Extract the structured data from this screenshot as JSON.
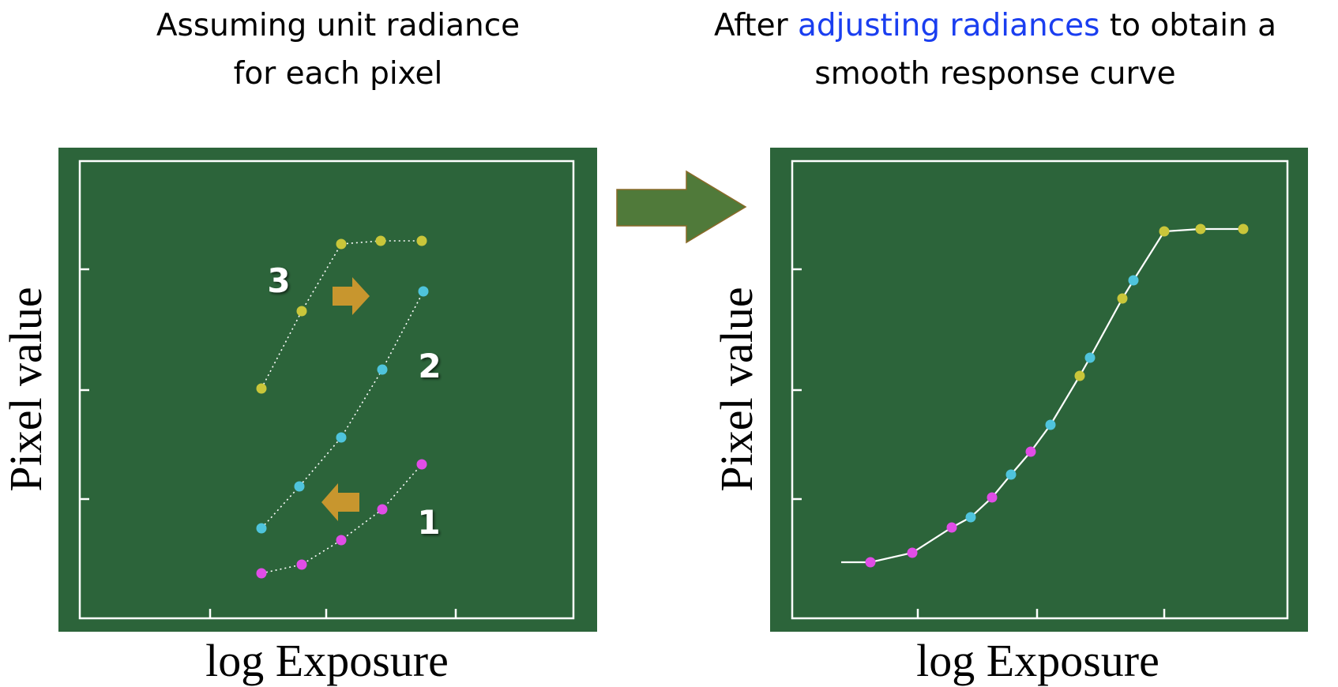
{
  "left_panel": {
    "title_line1": "Assuming unit radiance",
    "title_line2": "for each pixel",
    "ylabel": "Pixel value",
    "xlabel": "log Exposure",
    "series_labels": [
      "1",
      "2",
      "3"
    ]
  },
  "right_panel": {
    "title_part1": "After ",
    "title_highlight": "adjusting radiances",
    "title_part2": " to obtain a",
    "title_line2": "smooth response curve",
    "ylabel": "Pixel value",
    "xlabel": "log Exposure"
  },
  "colors": {
    "panel_bg": "#2c643a",
    "frame": "#ffffff",
    "series_1": "#e04de6",
    "series_2": "#4fc4dc",
    "series_3": "#c9c63a",
    "shift_arrow": "#c8962e",
    "big_arrow": "#507a3a",
    "highlight_text": "#1a3ef0"
  },
  "icons": {
    "shift_arrow_series_3": "arrow-right",
    "shift_arrow_series_1": "arrow-left",
    "transition_arrow": "arrow-right"
  }
}
